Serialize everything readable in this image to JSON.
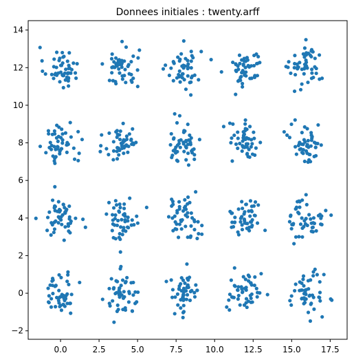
{
  "chart_data": {
    "type": "scatter",
    "title": "Donnees initiales : twenty.arff",
    "xlim": [
      -2.1,
      18.6
    ],
    "ylim": [
      -2.45,
      14.5
    ],
    "x_ticks": [
      0.0,
      2.5,
      5.0,
      7.5,
      10.0,
      12.5,
      15.0,
      17.5
    ],
    "x_tick_labels": [
      "0.0",
      "2.5",
      "5.0",
      "7.5",
      "10.0",
      "12.5",
      "15.0",
      "17.5"
    ],
    "y_ticks": [
      -2,
      0,
      2,
      4,
      6,
      8,
      10,
      12,
      14
    ],
    "y_tick_labels": [
      "−2",
      "0",
      "2",
      "4",
      "6",
      "8",
      "10",
      "12",
      "14"
    ],
    "grid": false,
    "marker_color": "#1f77b4",
    "clusters": [
      {
        "cx": 0.0,
        "cy": 12.0
      },
      {
        "cx": 4.0,
        "cy": 12.0
      },
      {
        "cx": 8.0,
        "cy": 12.0
      },
      {
        "cx": 12.0,
        "cy": 12.0
      },
      {
        "cx": 16.0,
        "cy": 12.0
      },
      {
        "cx": 0.0,
        "cy": 8.0
      },
      {
        "cx": 4.0,
        "cy": 8.0
      },
      {
        "cx": 8.0,
        "cy": 8.0
      },
      {
        "cx": 12.0,
        "cy": 8.0
      },
      {
        "cx": 16.0,
        "cy": 8.0
      },
      {
        "cx": 0.0,
        "cy": 4.0
      },
      {
        "cx": 4.0,
        "cy": 4.0
      },
      {
        "cx": 8.0,
        "cy": 4.0
      },
      {
        "cx": 12.0,
        "cy": 4.0
      },
      {
        "cx": 16.0,
        "cy": 4.0
      },
      {
        "cx": 0.0,
        "cy": 0.0
      },
      {
        "cx": 4.0,
        "cy": 0.0
      },
      {
        "cx": 8.0,
        "cy": 0.0
      },
      {
        "cx": 12.0,
        "cy": 0.0
      },
      {
        "cx": 16.0,
        "cy": 0.0
      }
    ],
    "points_per_cluster": 50,
    "cluster_spread": 0.55
  }
}
